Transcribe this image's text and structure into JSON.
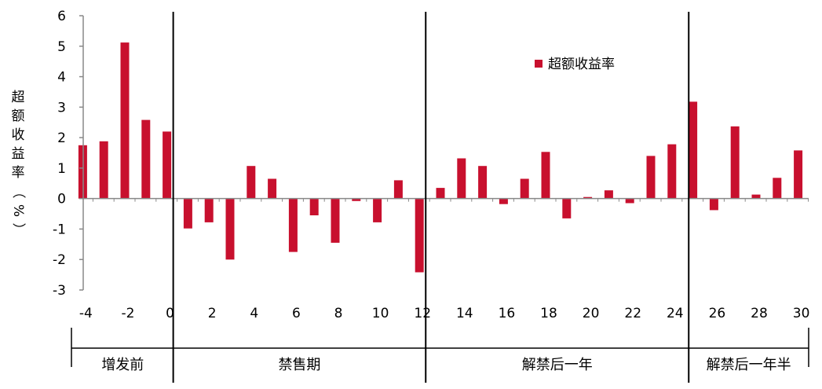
{
  "chart_data": {
    "type": "bar",
    "x": [
      -4,
      -3,
      -2,
      -1,
      0,
      1,
      2,
      3,
      4,
      5,
      6,
      7,
      8,
      9,
      10,
      11,
      12,
      13,
      14,
      15,
      16,
      17,
      18,
      19,
      20,
      21,
      22,
      23,
      24,
      25,
      26,
      27,
      28,
      29,
      30
    ],
    "series": [
      {
        "name": "超额收益率",
        "color": "#c8102e",
        "values": [
          1.75,
          1.88,
          5.12,
          2.58,
          2.2,
          -0.98,
          -0.78,
          -2.0,
          1.07,
          0.65,
          -1.75,
          -0.55,
          -1.45,
          -0.08,
          -0.78,
          0.6,
          -2.42,
          0.35,
          1.32,
          1.07,
          -0.18,
          0.65,
          1.53,
          -0.65,
          0.05,
          0.27,
          -0.15,
          1.4,
          1.78,
          3.18,
          -0.38,
          2.37,
          0.13,
          0.68,
          1.58
        ]
      }
    ],
    "ylabel": "超额收益率（%）",
    "ylabel_chars": [
      "超",
      "额",
      "收",
      "益",
      "率",
      "（",
      "%",
      "）"
    ],
    "ylim": [
      -3,
      6
    ],
    "yticks": [
      -3,
      -2,
      -1,
      0,
      1,
      2,
      3,
      4,
      5,
      6
    ],
    "xticks": [
      -4,
      -2,
      0,
      2,
      4,
      6,
      8,
      10,
      12,
      14,
      16,
      18,
      20,
      22,
      24,
      26,
      28,
      30
    ],
    "xlim": [
      -4.5,
      30.5
    ],
    "dividers": [
      0.3,
      12.3,
      24.8
    ],
    "periods": [
      {
        "label": "增发前",
        "from": -4.5,
        "to": 0.3
      },
      {
        "label": "禁售期",
        "from": 0.3,
        "to": 12.3
      },
      {
        "label": "解禁后一年",
        "from": 12.3,
        "to": 24.8
      },
      {
        "label": "解禁后一年半",
        "from": 24.8,
        "to": 30.5
      }
    ],
    "legend": "top-right",
    "grid": false
  }
}
